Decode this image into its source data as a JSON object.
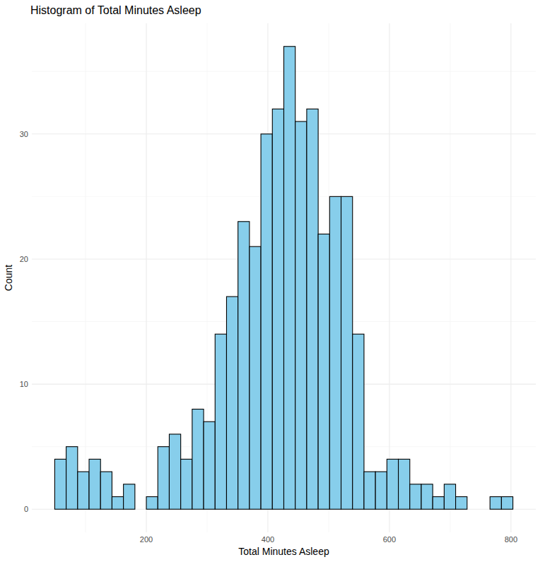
{
  "chart_data": {
    "type": "histogram",
    "title": "Histogram of Total Minutes Asleep",
    "x_label": "Total Minutes Asleep",
    "y_label": "Count",
    "bins": [
      49.2,
      68.05,
      86.9,
      105.75,
      124.6,
      143.45,
      162.3,
      181.15,
      200,
      218.85,
      237.7,
      256.55,
      275.4,
      294.25,
      313.1,
      331.95,
      350.8,
      369.65,
      388.5,
      407.35,
      426.2,
      445.05,
      463.9,
      482.75,
      501.6,
      520.45,
      539.3,
      558.15,
      577,
      595.85,
      614.7,
      633.55,
      652.4,
      671.25,
      690.1,
      708.95,
      727.8,
      746.65,
      765.5,
      784.35,
      803.2
    ],
    "values": [
      4,
      5,
      3,
      4,
      3,
      1,
      2,
      0,
      1,
      5,
      6,
      4,
      8,
      7,
      14,
      17,
      23,
      21,
      30,
      32,
      37,
      31,
      32,
      22,
      25,
      25,
      14,
      3,
      3,
      4,
      4,
      2,
      2,
      1,
      2,
      1,
      0,
      0,
      1,
      1
    ],
    "color": "#87ceeb",
    "xlim": [
      11.5,
      840.9
    ],
    "xticks": [
      200,
      400,
      600,
      800
    ],
    "ylim": [
      -1.85,
      38.85
    ],
    "yticks": [
      0,
      10,
      20,
      30
    ],
    "grid": true
  }
}
